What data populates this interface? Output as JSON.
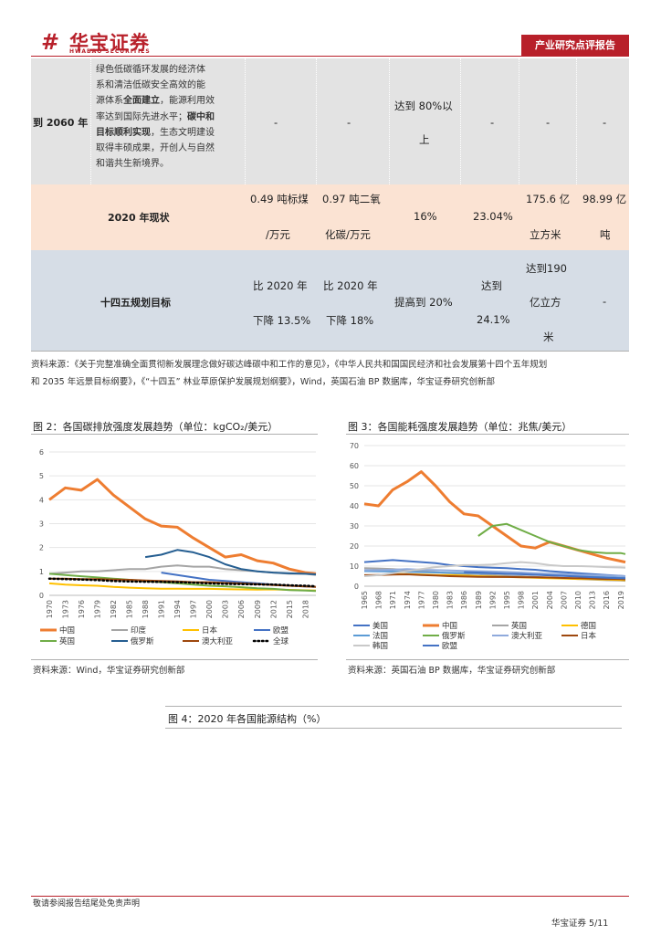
{
  "header": {
    "logo_cn": "华宝证券",
    "logo_en": "HWABAO SECURITIES",
    "tag": "产业研究点评报告"
  },
  "table": {
    "row2060": {
      "label": "到 2060 年",
      "desc_lines": [
        "绿色低碳循环发展的经济体",
        "系和清洁低碳安全高效的能",
        "源体系",
        "全面建立",
        "，能源利用效",
        "率达到国际先进水平；",
        "碳中和",
        "目标顺利实现",
        "，生态文明建设",
        "取得丰硕成果，开创人与自然",
        "和谐共生新境界。"
      ],
      "c1": "-",
      "c2": "-",
      "c3a": "达到 80%以",
      "c3b": "上",
      "c4": "-",
      "c5": "-",
      "c6": "-"
    },
    "row2020": {
      "label": "2020 年现状",
      "c1a": "0.49 吨标煤",
      "c1b": "/万元",
      "c2a": "0.97 吨二氧",
      "c2b": "化碳/万元",
      "c3": "16%",
      "c4": "23.04%",
      "c5a": "175.6 亿",
      "c5b": "立方米",
      "c6a": "98.99 亿",
      "c6b": "吨"
    },
    "row14": {
      "label": "十四五规划目标",
      "c1a": "比 2020 年",
      "c1b": "下降 13.5%",
      "c2a": "比 2020 年",
      "c2b": "下降 18%",
      "c3": "提高到 20%",
      "c4a": "达到",
      "c4b": "24.1%",
      "c5a": "达到190",
      "c5b": "亿立方",
      "c5c": "米",
      "c6": "-"
    }
  },
  "source_top": {
    "line1": "资料来源：《关于完整准确全面贯彻新发展理念做好碳达峰碳中和工作的意见》，《中华人民共和国国民经济和社会发展第十四个五年规划",
    "line2": "和 2035 年远景目标纲要》，《“十四五” 林业草原保护发展规划纲要》，Wind，英国石油 BP 数据库，华宝证券研究创新部"
  },
  "fig2": {
    "title": "图 2：各国碳排放强度发展趋势（单位：kgCO₂/美元）",
    "source": "资料来源：Wind，华宝证券研究创新部"
  },
  "fig3": {
    "title": "图 3：各国能耗强度发展趋势（单位：兆焦/美元）",
    "source": "资料来源：英国石油 BP 数据库，华宝证券研究创新部"
  },
  "fig4": {
    "title": "图 4：2020 年各国能源结构（%）"
  },
  "footer": {
    "disclaimer": "敬请参阅报告结尾处免责声明",
    "page": "华宝证券     5/11"
  },
  "chart_data": [
    {
      "type": "line",
      "title": "各国碳排放强度发展趋势（单位：kgCO₂/美元）",
      "x": [
        1970,
        1973,
        1976,
        1979,
        1982,
        1985,
        1988,
        1991,
        1994,
        1997,
        2000,
        2003,
        2006,
        2009,
        2012,
        2015,
        2018,
        2020
      ],
      "xticks": [
        "1970",
        "1973",
        "1976",
        "1979",
        "1982",
        "1985",
        "1988",
        "1991",
        "1994",
        "1997",
        "2000",
        "2003",
        "2006",
        "2009",
        "2012",
        "2015",
        "2018"
      ],
      "ylim": [
        0,
        6
      ],
      "yticks": [
        "0",
        "1",
        "2",
        "3",
        "4",
        "5",
        "6"
      ],
      "series": [
        {
          "name": "中国",
          "color": "#ee7d31",
          "values": [
            4.0,
            4.5,
            4.4,
            4.85,
            4.2,
            3.7,
            3.2,
            2.9,
            2.85,
            2.4,
            2.0,
            1.6,
            1.7,
            1.45,
            1.35,
            1.1,
            0.95,
            0.9
          ]
        },
        {
          "name": "印度",
          "color": "#a5a5a5",
          "values": [
            0.9,
            0.95,
            1.0,
            1.0,
            1.05,
            1.1,
            1.1,
            1.2,
            1.25,
            1.2,
            1.2,
            1.1,
            1.05,
            1.0,
            0.95,
            0.9,
            0.9,
            0.85
          ]
        },
        {
          "name": "日本",
          "color": "#ffc000",
          "values": [
            0.5,
            0.45,
            0.42,
            0.4,
            0.35,
            0.32,
            0.3,
            0.28,
            0.28,
            0.27,
            0.27,
            0.26,
            0.25,
            0.24,
            0.25,
            0.23,
            0.21,
            0.2
          ]
        },
        {
          "name": "欧盟",
          "color": "#4472c4",
          "values": [
            null,
            null,
            null,
            null,
            null,
            null,
            null,
            0.95,
            0.85,
            0.75,
            0.65,
            0.6,
            0.55,
            0.5,
            0.45,
            0.4,
            0.37,
            0.35
          ]
        },
        {
          "name": "英国",
          "color": "#70ad47",
          "values": [
            0.9,
            0.85,
            0.8,
            0.75,
            0.7,
            0.65,
            0.6,
            0.55,
            0.5,
            0.45,
            0.4,
            0.38,
            0.34,
            0.3,
            0.27,
            0.22,
            0.2,
            0.18
          ]
        },
        {
          "name": "俄罗斯",
          "color": "#255e91",
          "values": [
            null,
            null,
            null,
            null,
            null,
            null,
            1.6,
            1.7,
            1.9,
            1.8,
            1.6,
            1.3,
            1.1,
            1.0,
            0.95,
            0.92,
            0.9,
            0.88
          ]
        },
        {
          "name": "澳大利亚",
          "color": "#9e480e",
          "values": [
            0.7,
            0.7,
            0.68,
            0.68,
            0.66,
            0.65,
            0.62,
            0.6,
            0.58,
            0.55,
            0.55,
            0.52,
            0.5,
            0.47,
            0.43,
            0.4,
            0.37,
            0.35
          ]
        },
        {
          "name": "全球",
          "color": "#000000",
          "dashed": true,
          "values": [
            0.7,
            0.68,
            0.66,
            0.64,
            0.6,
            0.58,
            0.57,
            0.56,
            0.55,
            0.53,
            0.5,
            0.48,
            0.47,
            0.46,
            0.45,
            0.42,
            0.4,
            0.38
          ]
        }
      ]
    },
    {
      "type": "line",
      "title": "各国能耗强度发展趋势（单位：兆焦/美元）",
      "x": [
        1965,
        1968,
        1971,
        1974,
        1977,
        1980,
        1983,
        1986,
        1989,
        1992,
        1995,
        1998,
        2001,
        2004,
        2007,
        2010,
        2013,
        2016,
        2019,
        2020
      ],
      "xticks": [
        "1965",
        "1968",
        "1971",
        "1974",
        "1977",
        "1980",
        "1983",
        "1986",
        "1989",
        "1992",
        "1995",
        "1998",
        "2001",
        "2004",
        "2007",
        "2010",
        "2013",
        "2016",
        "2019"
      ],
      "ylim": [
        0,
        70
      ],
      "yticks": [
        "0",
        "10",
        "20",
        "30",
        "40",
        "50",
        "60",
        "70"
      ],
      "series": [
        {
          "name": "美国",
          "color": "#4472c4",
          "values": [
            12,
            12.5,
            13,
            12.5,
            12,
            11.5,
            10.5,
            10,
            9.5,
            9.2,
            9.0,
            8.5,
            8.2,
            7.5,
            7.0,
            6.5,
            6.0,
            5.6,
            5.2,
            5.0
          ]
        },
        {
          "name": "中国",
          "color": "#ee7d31",
          "values": [
            41,
            40,
            48,
            52,
            57,
            50,
            42,
            36,
            35,
            30,
            25,
            20,
            19,
            22,
            20,
            18,
            16,
            14,
            12.5,
            12
          ]
        },
        {
          "name": "英国",
          "color": "#a5a5a5",
          "values": [
            9,
            8.8,
            8.5,
            8,
            7.5,
            7.0,
            6.5,
            6.2,
            6,
            5.5,
            5.2,
            5,
            4.6,
            4.3,
            4,
            3.6,
            3.3,
            3.0,
            2.8,
            2.7
          ]
        },
        {
          "name": "德国",
          "color": "#ffc000",
          "values": [
            null,
            null,
            6.0,
            6.0,
            5.8,
            5.6,
            5.5,
            5.3,
            5.0,
            4.8,
            4.6,
            4.4,
            4.2,
            4.0,
            3.8,
            3.6,
            3.5,
            3.3,
            3.1,
            3.0
          ]
        },
        {
          "name": "法国",
          "color": "#5b9bd5",
          "values": [
            7.5,
            7.4,
            7.3,
            7.2,
            7.0,
            6.8,
            6.7,
            6.6,
            6.5,
            6.4,
            6.2,
            6.0,
            5.8,
            5.6,
            5.3,
            5.0,
            4.8,
            4.5,
            4.2,
            4.1
          ]
        },
        {
          "name": "俄罗斯",
          "color": "#70ad47",
          "values": [
            null,
            null,
            null,
            null,
            null,
            null,
            null,
            null,
            25,
            30,
            31,
            28,
            25,
            22,
            20,
            18,
            17,
            16.5,
            16.5,
            16
          ]
        },
        {
          "name": "澳大利亚",
          "color": "#8faadc",
          "values": [
            8,
            8,
            8.2,
            8.5,
            8.2,
            8,
            7.8,
            7.6,
            7.5,
            7.3,
            7.1,
            6.8,
            6.5,
            6.2,
            6,
            5.7,
            5.5,
            5.3,
            5.1,
            5.0
          ]
        },
        {
          "name": "日本",
          "color": "#9e480e",
          "values": [
            5.5,
            5.6,
            5.8,
            5.9,
            5.6,
            5.3,
            5.0,
            4.8,
            4.7,
            4.6,
            4.6,
            4.5,
            4.4,
            4.3,
            4.1,
            4.0,
            3.8,
            3.6,
            3.5,
            3.4
          ]
        },
        {
          "name": "韩国",
          "color": "#c9c9c9",
          "values": [
            5,
            5.5,
            6.5,
            7.5,
            8.5,
            9.5,
            10,
            10.5,
            10.5,
            10.8,
            11.5,
            12,
            11.5,
            10.5,
            10,
            10,
            9.8,
            9.5,
            9.3,
            9.2
          ]
        },
        {
          "name": "欧盟",
          "color": "#4472c4",
          "values": [
            null,
            null,
            null,
            null,
            null,
            null,
            null,
            7,
            6.8,
            6.5,
            6.2,
            6.0,
            5.7,
            5.4,
            5.1,
            4.8,
            4.5,
            4.2,
            4.0,
            3.9
          ]
        }
      ]
    }
  ]
}
